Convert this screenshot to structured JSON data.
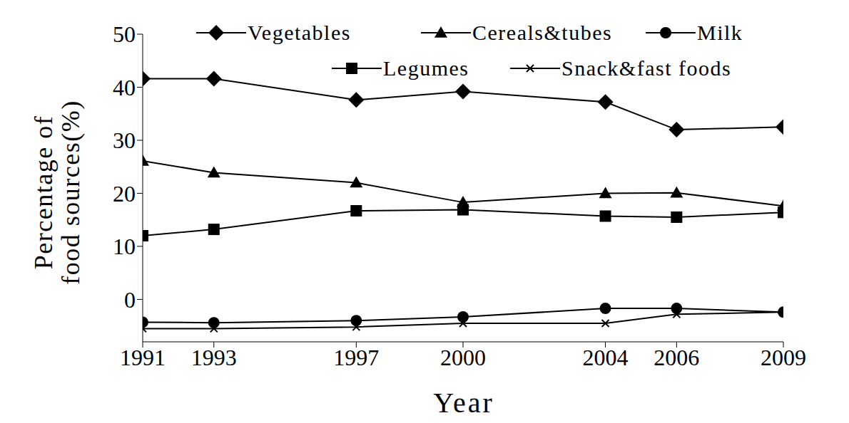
{
  "chart_data": {
    "type": "line",
    "x_label": "Year",
    "y_label": "Percentage of\nfood sources(%)",
    "x": [
      1991,
      1993,
      1997,
      2000,
      2004,
      2006,
      2009
    ],
    "xlim": [
      1991,
      2009
    ],
    "xticks": [
      1991,
      1993,
      1997,
      2000,
      2004,
      2006,
      2009
    ],
    "ylim": [
      -8,
      50
    ],
    "yticks": [
      0,
      10,
      20,
      30,
      40,
      50
    ],
    "grid": false,
    "legend": "top",
    "series": [
      {
        "name": "Vegetables",
        "color": "#000000",
        "marker": "diamond",
        "values": [
          41.6,
          41.6,
          37.6,
          39.2,
          37.2,
          32,
          32.5
        ]
      },
      {
        "name": "Cereals&tubes",
        "color": "#000000",
        "marker": "triangle",
        "values": [
          26.1,
          23.9,
          22,
          18.3,
          20,
          20.1,
          17.6
        ]
      },
      {
        "name": "Milk",
        "color": "#000000",
        "marker": "circle",
        "values": [
          -4.3,
          -4.4,
          -4,
          -3.3,
          -1.7,
          -1.7,
          -2.4
        ]
      },
      {
        "name": "Legumes",
        "color": "#000000",
        "marker": "square",
        "values": [
          12,
          13.2,
          16.7,
          16.9,
          15.7,
          15.5,
          16.4
        ]
      },
      {
        "name": "Snack&fast foods",
        "color": "#000000",
        "marker": "x",
        "values": [
          -5.5,
          -5.5,
          -5.2,
          -4.5,
          -4.5,
          -2.8,
          -2.4
        ]
      }
    ]
  }
}
